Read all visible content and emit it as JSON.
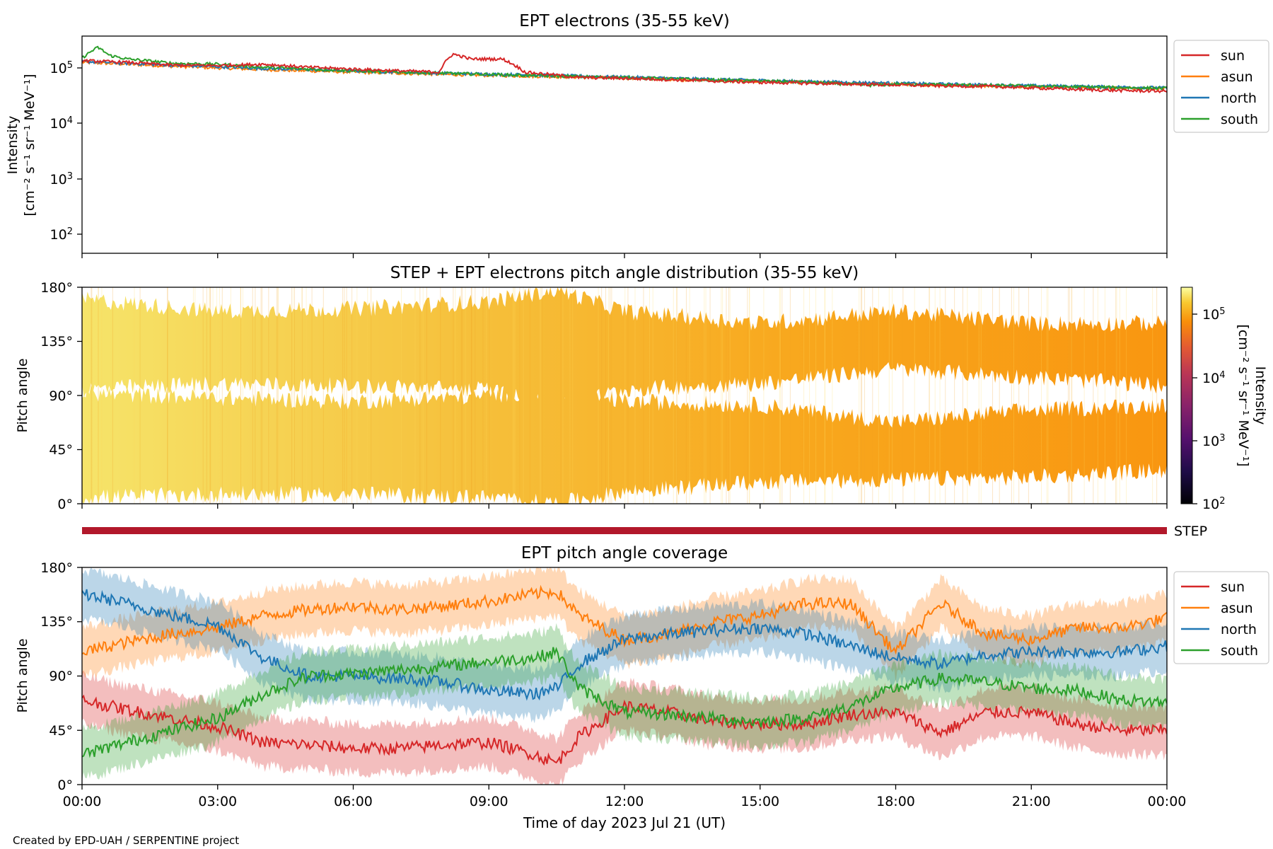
{
  "figure": {
    "credit": "Created by EPD-UAH / SERPENTINE project",
    "xlabel": "Time of day 2023 Jul 21 (UT)",
    "xticks": [
      "00:00",
      "03:00",
      "06:00",
      "09:00",
      "12:00",
      "15:00",
      "18:00",
      "21:00",
      "00:00"
    ]
  },
  "colors": {
    "sun": "#d62728",
    "asun": "#ff7f0e",
    "north": "#1f77b4",
    "south": "#2ca02c",
    "step": "#b2182b"
  },
  "panel1": {
    "title": "EPT electrons (35-55 keV)",
    "ylabel_line1": "Intensity",
    "ylabel_line2": "[cm⁻² s⁻¹ sr⁻¹ MeV⁻¹]",
    "yticks": [
      {
        "base": "10",
        "exp": "5"
      },
      {
        "base": "10",
        "exp": "4"
      },
      {
        "base": "10",
        "exp": "3"
      },
      {
        "base": "10",
        "exp": "2"
      }
    ],
    "legend": [
      "sun",
      "asun",
      "north",
      "south"
    ]
  },
  "panel2": {
    "title": "STEP + EPT electrons pitch angle distribution (35-55 keV)",
    "ylabel": "Pitch angle",
    "yticks": [
      "180°",
      "135°",
      "90°",
      "45°",
      "0°"
    ],
    "colorbar_label_line1": "Intensity",
    "colorbar_label_line2": "[cm⁻² s⁻¹ sr⁻¹ MeV⁻¹]",
    "colorbar_ticks": [
      {
        "base": "10",
        "exp": "5"
      },
      {
        "base": "10",
        "exp": "4"
      },
      {
        "base": "10",
        "exp": "3"
      },
      {
        "base": "10",
        "exp": "2"
      }
    ]
  },
  "step_bar": {
    "label": "STEP"
  },
  "panel3": {
    "title": "EPT pitch angle coverage",
    "ylabel": "Pitch angle",
    "yticks": [
      "180°",
      "135°",
      "90°",
      "45°",
      "0°"
    ],
    "legend": [
      "sun",
      "asun",
      "north",
      "south"
    ]
  },
  "chart_data": [
    {
      "type": "line",
      "title": "EPT electrons (35-55 keV)",
      "ylabel": "Intensity [cm⁻² s⁻¹ sr⁻¹ MeV⁻¹]",
      "xlabel": "Time of day 2023 Jul 21 (UT)",
      "yscale": "log",
      "ylim": [
        50,
        400000
      ],
      "xlim_hours": [
        0,
        24
      ],
      "legend_position": "outside-right-top",
      "series": [
        {
          "name": "sun",
          "x_hours": [
            0,
            1,
            2,
            3,
            4,
            5,
            6,
            7,
            7.9,
            8.2,
            8.6,
            9.3,
            9.8,
            11,
            12,
            13,
            14,
            15,
            16,
            17,
            18,
            19,
            20,
            21,
            22,
            23,
            24
          ],
          "y": [
            145000,
            135000,
            120000,
            118000,
            125000,
            110000,
            102000,
            95000,
            90000,
            190000,
            155000,
            155000,
            90000,
            72000,
            70000,
            66000,
            62000,
            59000,
            57000,
            55000,
            53000,
            51000,
            50000,
            47000,
            44000,
            42000,
            41000
          ]
        },
        {
          "name": "asun",
          "x_hours": [
            0,
            2,
            4,
            6,
            8,
            10,
            12,
            14,
            16,
            18,
            20,
            22,
            24
          ],
          "y": [
            135000,
            115000,
            100000,
            90000,
            82000,
            76000,
            70000,
            64000,
            59000,
            55000,
            51000,
            48000,
            46000
          ]
        },
        {
          "name": "north",
          "x_hours": [
            0,
            2,
            4,
            6,
            8,
            10,
            12,
            14,
            16,
            18,
            20,
            22,
            24
          ],
          "y": [
            140000,
            120000,
            105000,
            95000,
            86000,
            80000,
            73000,
            67000,
            61000,
            57000,
            53000,
            50000,
            47000
          ]
        },
        {
          "name": "south",
          "x_hours": [
            0,
            0.35,
            0.6,
            1,
            2,
            3,
            4,
            6,
            8,
            10,
            12,
            14,
            16,
            17.5,
            18,
            20,
            22,
            24
          ],
          "y": [
            160000,
            250000,
            180000,
            155000,
            130000,
            125000,
            110000,
            95000,
            86000,
            78000,
            72000,
            65000,
            60000,
            52000,
            55000,
            52000,
            49000,
            46000
          ]
        }
      ]
    },
    {
      "type": "heatmap",
      "title": "STEP + EPT electrons pitch angle distribution (35-55 keV)",
      "ylabel": "Pitch angle",
      "ylim": [
        0,
        180
      ],
      "colorbar": {
        "label": "Intensity [cm⁻² s⁻¹ sr⁻¹ MeV⁻¹]",
        "scale": "log",
        "range": [
          100,
          250000
        ],
        "colormap": "inferno"
      },
      "coverage_bands": [
        {
          "name": "upper",
          "x_hours": [
            0,
            3,
            6,
            9,
            10.5,
            12,
            15,
            18,
            21,
            24
          ],
          "low": [
            95,
            100,
            98,
            95,
            80,
            95,
            100,
            112,
            105,
            98
          ],
          "high": [
            170,
            160,
            162,
            168,
            178,
            160,
            150,
            160,
            150,
            150
          ]
        },
        {
          "name": "lower",
          "x_hours": [
            0,
            3,
            6,
            9,
            10.5,
            12,
            15,
            18,
            21,
            24
          ],
          "low": [
            5,
            8,
            8,
            5,
            0,
            10,
            18,
            20,
            22,
            28
          ],
          "high": [
            92,
            88,
            85,
            90,
            95,
            85,
            82,
            68,
            78,
            82
          ]
        }
      ]
    },
    {
      "type": "line",
      "title": "EPT pitch angle coverage",
      "ylabel": "Pitch angle",
      "xlabel": "Time of day 2023 Jul 21 (UT)",
      "ylim": [
        0,
        180
      ],
      "xlim_hours": [
        0,
        24
      ],
      "band_halfwidth_deg": 20,
      "legend_position": "outside-right-top",
      "series": [
        {
          "name": "sun",
          "x_hours": [
            0,
            1,
            2,
            3,
            4,
            5,
            6,
            7,
            8,
            9,
            10,
            10.5,
            11,
            12,
            13,
            14,
            15,
            16,
            17,
            18,
            19,
            20,
            21,
            22,
            23,
            24
          ],
          "y": [
            70,
            62,
            55,
            48,
            35,
            33,
            30,
            30,
            33,
            35,
            25,
            18,
            40,
            65,
            60,
            52,
            50,
            50,
            58,
            60,
            43,
            60,
            60,
            50,
            45,
            45
          ]
        },
        {
          "name": "asun",
          "x_hours": [
            0,
            1,
            2,
            3,
            4,
            5,
            6,
            7,
            8,
            9,
            10,
            10.5,
            11,
            12,
            13,
            14,
            15,
            16,
            17,
            18,
            19,
            20,
            21,
            22,
            23,
            24
          ],
          "y": [
            110,
            118,
            125,
            130,
            140,
            145,
            148,
            145,
            148,
            152,
            158,
            160,
            140,
            120,
            125,
            135,
            140,
            150,
            150,
            110,
            150,
            125,
            120,
            130,
            130,
            138
          ]
        },
        {
          "name": "north",
          "x_hours": [
            0,
            1,
            2,
            3,
            4,
            5,
            6,
            7,
            8,
            9,
            10,
            10.5,
            11,
            12,
            13,
            14,
            15,
            16,
            17,
            18,
            19,
            20,
            21,
            22,
            23,
            24
          ],
          "y": [
            158,
            150,
            140,
            132,
            105,
            90,
            90,
            88,
            85,
            78,
            75,
            80,
            100,
            120,
            125,
            128,
            130,
            125,
            115,
            105,
            100,
            108,
            110,
            110,
            110,
            115
          ]
        },
        {
          "name": "south",
          "x_hours": [
            0,
            1,
            2,
            3,
            4,
            5,
            6,
            7,
            8,
            9,
            10,
            10.5,
            11,
            12,
            13,
            14,
            15,
            16,
            17,
            18,
            19,
            20,
            21,
            22,
            23,
            24
          ],
          "y": [
            25,
            35,
            45,
            55,
            75,
            90,
            92,
            95,
            98,
            102,
            105,
            110,
            80,
            60,
            58,
            55,
            52,
            55,
            65,
            80,
            88,
            85,
            80,
            78,
            70,
            68
          ]
        }
      ]
    }
  ]
}
